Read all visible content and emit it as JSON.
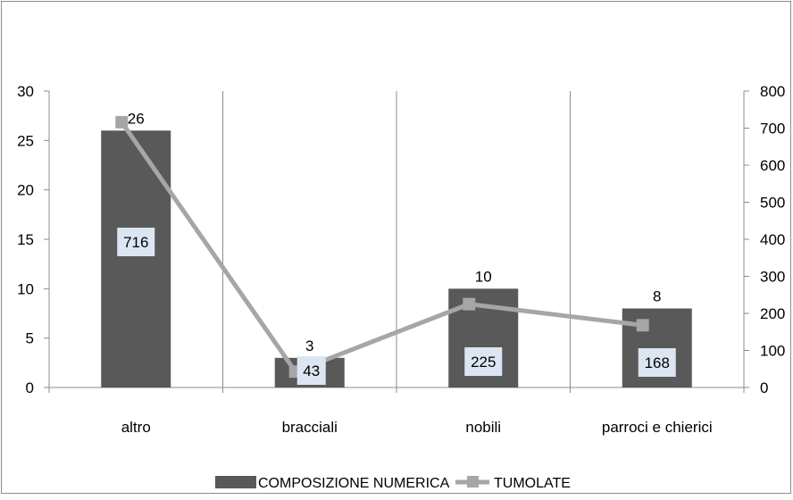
{
  "chart_data": {
    "type": "bar",
    "categories": [
      "altro",
      "bracciali",
      "nobili",
      "parroci e chierici"
    ],
    "series": [
      {
        "name": "COMPOSIZIONE NUMERICA",
        "type": "bar",
        "axis": "left",
        "values": [
          26,
          3,
          10,
          8
        ],
        "color": "#595959"
      },
      {
        "name": "TUMOLATE",
        "type": "line",
        "axis": "right",
        "values": [
          716,
          43,
          225,
          168
        ],
        "color": "#a6a6a6"
      }
    ],
    "y_left": {
      "min": 0,
      "max": 30,
      "ticks": [
        0,
        5,
        10,
        15,
        20,
        25,
        30
      ]
    },
    "y_right": {
      "min": 0,
      "max": 800,
      "ticks": [
        0,
        100,
        200,
        300,
        400,
        500,
        600,
        700,
        800
      ]
    },
    "grid": "vertical",
    "legend_position": "bottom",
    "label_box_color": "#dce6f2"
  }
}
